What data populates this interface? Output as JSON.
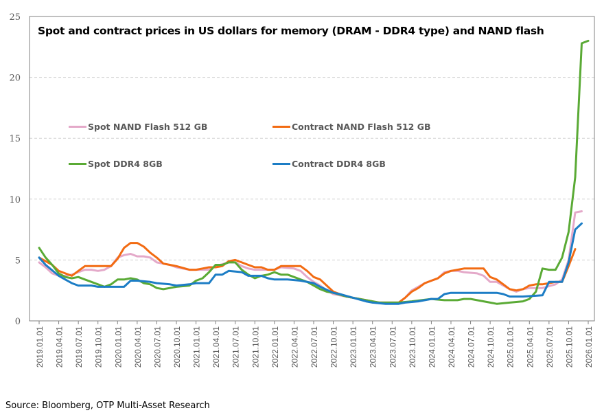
{
  "chart_data": {
    "type": "line",
    "title": "Spot and contract prices in US dollars for memory (DRAM - DDR4 type) and NAND flash",
    "xlabel": "",
    "ylabel": "",
    "ylim": [
      0,
      25
    ],
    "yticks": [
      "0",
      "5",
      "10",
      "15",
      "20",
      "25"
    ],
    "grid": "horizontal dashed",
    "legend": "inside-upper-left",
    "xticks": [
      "2019.01.01",
      "2019.04.01",
      "2019.07.01",
      "2019.10.01",
      "2020.01.01",
      "2020.04.01",
      "2020.07.01",
      "2020.10.01",
      "2021.01.01",
      "2021.04.01",
      "2021.07.01",
      "2021.10.01",
      "2022.01.01",
      "2022.04.01",
      "2022.07.01",
      "2022.10.01",
      "2023.01.01",
      "2023.04.01",
      "2023.07.01",
      "2023.10.01",
      "2024.01.01",
      "2024.04.01",
      "2024.07.01",
      "2024.10.01",
      "2025.01.01",
      "2025.04.01",
      "2025.07.01",
      "2025.10.01",
      "2026.01.01"
    ],
    "series": [
      {
        "name": "Spot NAND Flash 512 GB",
        "color": "#e4a9c9",
        "points": [
          [
            "2019-01",
            4.8
          ],
          [
            "2019-02",
            4.4
          ],
          [
            "2019-03",
            3.9
          ],
          [
            "2019-04",
            3.7
          ],
          [
            "2019-05",
            3.7
          ],
          [
            "2019-06",
            3.8
          ],
          [
            "2019-07",
            4.0
          ],
          [
            "2019-08",
            4.2
          ],
          [
            "2019-09",
            4.2
          ],
          [
            "2019-10",
            4.1
          ],
          [
            "2019-11",
            4.2
          ],
          [
            "2019-12",
            4.5
          ],
          [
            "2020-01",
            5.2
          ],
          [
            "2020-02",
            5.4
          ],
          [
            "2020-03",
            5.5
          ],
          [
            "2020-04",
            5.3
          ],
          [
            "2020-05",
            5.3
          ],
          [
            "2020-06",
            5.2
          ],
          [
            "2020-07",
            4.8
          ],
          [
            "2020-08",
            4.7
          ],
          [
            "2020-09",
            4.6
          ],
          [
            "2020-10",
            4.4
          ],
          [
            "2020-12",
            4.2
          ],
          [
            "2021-03",
            4.2
          ],
          [
            "2021-04",
            4.5
          ],
          [
            "2021-06",
            4.8
          ],
          [
            "2021-07",
            4.8
          ],
          [
            "2021-08",
            4.5
          ],
          [
            "2021-09",
            4.3
          ],
          [
            "2021-10",
            4.2
          ],
          [
            "2022-01",
            4.2
          ],
          [
            "2022-02",
            4.4
          ],
          [
            "2022-04",
            4.3
          ],
          [
            "2022-05",
            4.1
          ],
          [
            "2022-06",
            3.6
          ],
          [
            "2022-07",
            3.2
          ],
          [
            "2022-08",
            2.9
          ],
          [
            "2022-09",
            2.5
          ],
          [
            "2022-10",
            2.2
          ],
          [
            "2022-12",
            2.0
          ],
          [
            "2023-03",
            1.7
          ],
          [
            "2023-04",
            1.5
          ],
          [
            "2023-08",
            1.5
          ],
          [
            "2023-09",
            1.9
          ],
          [
            "2023-10",
            2.5
          ],
          [
            "2023-12",
            3.1
          ],
          [
            "2024-02",
            3.5
          ],
          [
            "2024-03",
            4.0
          ],
          [
            "2024-04",
            4.1
          ],
          [
            "2024-05",
            4.1
          ],
          [
            "2024-06",
            4.0
          ],
          [
            "2024-08",
            3.9
          ],
          [
            "2024-09",
            3.7
          ],
          [
            "2024-10",
            3.2
          ],
          [
            "2024-11",
            3.2
          ],
          [
            "2024-12",
            2.9
          ],
          [
            "2025-01",
            2.6
          ],
          [
            "2025-02",
            2.4
          ],
          [
            "2025-03",
            2.6
          ],
          [
            "2025-04",
            2.7
          ],
          [
            "2025-06",
            2.7
          ],
          [
            "2025-08",
            3.0
          ],
          [
            "2025-09",
            3.4
          ],
          [
            "2025-10",
            5.0
          ],
          [
            "2025-11",
            8.9
          ],
          [
            "2025-12",
            9.0
          ]
        ]
      },
      {
        "name": "Contract NAND Flash 512 GB",
        "color": "#f26b12",
        "points": [
          [
            "2019-01",
            5.2
          ],
          [
            "2019-02",
            4.9
          ],
          [
            "2019-03",
            4.6
          ],
          [
            "2019-04",
            4.1
          ],
          [
            "2019-05",
            3.9
          ],
          [
            "2019-06",
            3.7
          ],
          [
            "2019-07",
            4.1
          ],
          [
            "2019-08",
            4.5
          ],
          [
            "2019-12",
            4.5
          ],
          [
            "2020-01",
            5.1
          ],
          [
            "2020-02",
            6.0
          ],
          [
            "2020-03",
            6.4
          ],
          [
            "2020-04",
            6.4
          ],
          [
            "2020-05",
            6.1
          ],
          [
            "2020-06",
            5.6
          ],
          [
            "2020-07",
            5.2
          ],
          [
            "2020-08",
            4.7
          ],
          [
            "2020-09",
            4.6
          ],
          [
            "2020-10",
            4.5
          ],
          [
            "2020-12",
            4.2
          ],
          [
            "2021-01",
            4.2
          ],
          [
            "2021-02",
            4.3
          ],
          [
            "2021-03",
            4.4
          ],
          [
            "2021-04",
            4.4
          ],
          [
            "2021-05",
            4.5
          ],
          [
            "2021-06",
            4.9
          ],
          [
            "2021-07",
            5.0
          ],
          [
            "2021-08",
            4.8
          ],
          [
            "2021-09",
            4.6
          ],
          [
            "2021-10",
            4.4
          ],
          [
            "2021-11",
            4.4
          ],
          [
            "2021-12",
            4.2
          ],
          [
            "2022-01",
            4.2
          ],
          [
            "2022-02",
            4.5
          ],
          [
            "2022-05",
            4.5
          ],
          [
            "2022-06",
            4.1
          ],
          [
            "2022-07",
            3.6
          ],
          [
            "2022-08",
            3.4
          ],
          [
            "2022-09",
            2.9
          ],
          [
            "2022-10",
            2.4
          ],
          [
            "2022-11",
            2.2
          ],
          [
            "2022-12",
            2.0
          ],
          [
            "2023-01",
            1.9
          ],
          [
            "2023-02",
            1.8
          ],
          [
            "2023-03",
            1.7
          ],
          [
            "2023-04",
            1.6
          ],
          [
            "2023-05",
            1.5
          ],
          [
            "2023-08",
            1.5
          ],
          [
            "2023-09",
            1.9
          ],
          [
            "2023-10",
            2.4
          ],
          [
            "2023-11",
            2.7
          ],
          [
            "2023-12",
            3.1
          ],
          [
            "2024-01",
            3.3
          ],
          [
            "2024-02",
            3.5
          ],
          [
            "2024-03",
            3.9
          ],
          [
            "2024-04",
            4.1
          ],
          [
            "2024-05",
            4.2
          ],
          [
            "2024-06",
            4.3
          ],
          [
            "2024-09",
            4.3
          ],
          [
            "2024-10",
            3.6
          ],
          [
            "2024-11",
            3.4
          ],
          [
            "2024-12",
            3.0
          ],
          [
            "2025-01",
            2.6
          ],
          [
            "2025-02",
            2.5
          ],
          [
            "2025-03",
            2.6
          ],
          [
            "2025-04",
            2.9
          ],
          [
            "2025-05",
            3.0
          ],
          [
            "2025-06",
            3.0
          ],
          [
            "2025-07",
            3.1
          ],
          [
            "2025-08",
            3.2
          ],
          [
            "2025-09",
            3.2
          ],
          [
            "2025-10",
            4.5
          ],
          [
            "2025-11",
            5.9
          ]
        ]
      },
      {
        "name": "Spot DDR4 8GB",
        "color": "#5aaa35",
        "points": [
          [
            "2019-01",
            6.0
          ],
          [
            "2019-02",
            5.2
          ],
          [
            "2019-03",
            4.6
          ],
          [
            "2019-04",
            3.9
          ],
          [
            "2019-05",
            3.6
          ],
          [
            "2019-06",
            3.5
          ],
          [
            "2019-07",
            3.6
          ],
          [
            "2019-08",
            3.4
          ],
          [
            "2019-10",
            3.0
          ],
          [
            "2019-11",
            2.8
          ],
          [
            "2019-12",
            3.0
          ],
          [
            "2020-01",
            3.4
          ],
          [
            "2020-02",
            3.4
          ],
          [
            "2020-03",
            3.5
          ],
          [
            "2020-04",
            3.4
          ],
          [
            "2020-05",
            3.1
          ],
          [
            "2020-06",
            3.0
          ],
          [
            "2020-07",
            2.7
          ],
          [
            "2020-08",
            2.6
          ],
          [
            "2020-09",
            2.7
          ],
          [
            "2020-10",
            2.8
          ],
          [
            "2020-12",
            2.9
          ],
          [
            "2021-01",
            3.3
          ],
          [
            "2021-02",
            3.5
          ],
          [
            "2021-03",
            4.0
          ],
          [
            "2021-04",
            4.6
          ],
          [
            "2021-05",
            4.6
          ],
          [
            "2021-06",
            4.8
          ],
          [
            "2021-07",
            4.8
          ],
          [
            "2021-08",
            4.2
          ],
          [
            "2021-09",
            3.8
          ],
          [
            "2021-10",
            3.5
          ],
          [
            "2021-11",
            3.7
          ],
          [
            "2021-12",
            3.8
          ],
          [
            "2022-01",
            4.0
          ],
          [
            "2022-02",
            3.8
          ],
          [
            "2022-03",
            3.8
          ],
          [
            "2022-04",
            3.6
          ],
          [
            "2022-05",
            3.4
          ],
          [
            "2022-06",
            3.2
          ],
          [
            "2022-07",
            2.9
          ],
          [
            "2022-08",
            2.6
          ],
          [
            "2022-09",
            2.4
          ],
          [
            "2022-10",
            2.3
          ],
          [
            "2022-12",
            2.0
          ],
          [
            "2023-01",
            1.9
          ],
          [
            "2023-03",
            1.7
          ],
          [
            "2023-05",
            1.5
          ],
          [
            "2023-08",
            1.5
          ],
          [
            "2023-10",
            1.6
          ],
          [
            "2024-01",
            1.8
          ],
          [
            "2024-03",
            1.7
          ],
          [
            "2024-05",
            1.7
          ],
          [
            "2024-06",
            1.8
          ],
          [
            "2024-07",
            1.8
          ],
          [
            "2024-09",
            1.6
          ],
          [
            "2024-10",
            1.5
          ],
          [
            "2024-11",
            1.4
          ],
          [
            "2025-01",
            1.5
          ],
          [
            "2025-03",
            1.6
          ],
          [
            "2025-04",
            1.8
          ],
          [
            "2025-05",
            2.4
          ],
          [
            "2025-06",
            4.3
          ],
          [
            "2025-07",
            4.2
          ],
          [
            "2025-08",
            4.2
          ],
          [
            "2025-09",
            5.2
          ],
          [
            "2025-10",
            7.3
          ],
          [
            "2025-11",
            11.8
          ],
          [
            "2025-12",
            22.8
          ],
          [
            "2026-01",
            23.0
          ]
        ]
      },
      {
        "name": "Contract DDR4 8GB",
        "color": "#1c7dc5",
        "points": [
          [
            "2019-01",
            5.2
          ],
          [
            "2019-02",
            4.6
          ],
          [
            "2019-04",
            3.7
          ],
          [
            "2019-05",
            3.4
          ],
          [
            "2019-06",
            3.1
          ],
          [
            "2019-07",
            2.9
          ],
          [
            "2019-09",
            2.9
          ],
          [
            "2019-10",
            2.8
          ],
          [
            "2019-12",
            2.8
          ],
          [
            "2020-02",
            2.8
          ],
          [
            "2020-03",
            3.3
          ],
          [
            "2020-04",
            3.3
          ],
          [
            "2020-06",
            3.2
          ],
          [
            "2020-07",
            3.1
          ],
          [
            "2020-09",
            3.0
          ],
          [
            "2020-10",
            2.9
          ],
          [
            "2020-12",
            3.0
          ],
          [
            "2021-01",
            3.1
          ],
          [
            "2021-03",
            3.1
          ],
          [
            "2021-04",
            3.8
          ],
          [
            "2021-05",
            3.8
          ],
          [
            "2021-06",
            4.1
          ],
          [
            "2021-08",
            4.0
          ],
          [
            "2021-09",
            3.7
          ],
          [
            "2021-11",
            3.7
          ],
          [
            "2021-12",
            3.5
          ],
          [
            "2022-01",
            3.4
          ],
          [
            "2022-03",
            3.4
          ],
          [
            "2022-05",
            3.3
          ],
          [
            "2022-07",
            3.1
          ],
          [
            "2022-08",
            2.8
          ],
          [
            "2022-10",
            2.3
          ],
          [
            "2022-11",
            2.2
          ],
          [
            "2023-01",
            1.9
          ],
          [
            "2023-03",
            1.6
          ],
          [
            "2023-04",
            1.5
          ],
          [
            "2023-06",
            1.4
          ],
          [
            "2023-08",
            1.4
          ],
          [
            "2023-09",
            1.5
          ],
          [
            "2023-11",
            1.6
          ],
          [
            "2024-01",
            1.8
          ],
          [
            "2024-02",
            1.8
          ],
          [
            "2024-03",
            2.2
          ],
          [
            "2024-04",
            2.3
          ],
          [
            "2024-10",
            2.3
          ],
          [
            "2024-11",
            2.3
          ],
          [
            "2024-12",
            2.2
          ],
          [
            "2025-01",
            2.0
          ],
          [
            "2025-03",
            2.0
          ],
          [
            "2025-06",
            2.1
          ],
          [
            "2025-07",
            3.2
          ],
          [
            "2025-09",
            3.2
          ],
          [
            "2025-10",
            4.8
          ],
          [
            "2025-11",
            7.5
          ],
          [
            "2025-12",
            8.0
          ]
        ]
      }
    ],
    "source": "Source: Bloomberg, OTP Multi-Asset Research"
  }
}
